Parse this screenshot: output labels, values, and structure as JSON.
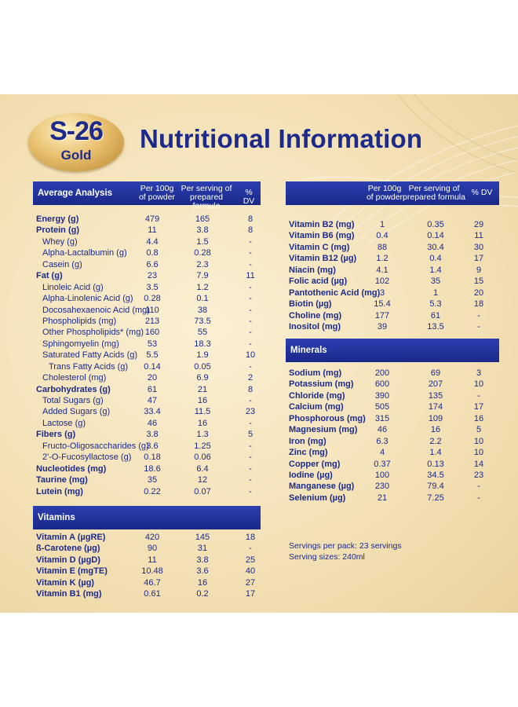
{
  "brand": {
    "logo_text": "S-26",
    "variant": "Gold"
  },
  "title": "Nutritional Information",
  "left_header": {
    "label": "Average Analysis",
    "col1": [
      "Per 100g",
      "of powder"
    ],
    "col2": [
      "Per serving of",
      "prepared formula"
    ],
    "col3": "% DV"
  },
  "right_header": {
    "col1": [
      "Per 100g",
      "of powder"
    ],
    "col2": [
      "Per serving of",
      "prepared formula"
    ],
    "col3": "% DV"
  },
  "average_analysis": [
    {
      "label": "Energy (g)",
      "indent": 0,
      "per100": "479",
      "serving": "165",
      "dv": "8"
    },
    {
      "label": "Protein (g)",
      "indent": 0,
      "per100": "11",
      "serving": "3.8",
      "dv": "8"
    },
    {
      "label": "Whey (g)",
      "indent": 1,
      "per100": "4.4",
      "serving": "1.5",
      "dv": "-"
    },
    {
      "label": "Alpha-Lactalbumin (g)",
      "indent": 1,
      "per100": "0.8",
      "serving": "0.28",
      "dv": "-"
    },
    {
      "label": "Casein (g)",
      "indent": 1,
      "per100": "6.6",
      "serving": "2.3",
      "dv": "-"
    },
    {
      "label": "Fat (g)",
      "indent": 0,
      "per100": "23",
      "serving": "7.9",
      "dv": "11"
    },
    {
      "label": "Linoleic Acid (g)",
      "indent": 1,
      "per100": "3.5",
      "serving": "1.2",
      "dv": "-"
    },
    {
      "label": "Alpha-Linolenic Acid (g)",
      "indent": 1,
      "per100": "0.28",
      "serving": "0.1",
      "dv": "-"
    },
    {
      "label": "Docosahexaenoic Acid (mg)",
      "indent": 1,
      "per100": "110",
      "serving": "38",
      "dv": "-"
    },
    {
      "label": "Phospholipids (mg)",
      "indent": 1,
      "per100": "213",
      "serving": "73.5",
      "dv": "-"
    },
    {
      "label": "Other Phospholipids* (mg)",
      "indent": 1,
      "per100": "160",
      "serving": "55",
      "dv": "-"
    },
    {
      "label": "Sphingomyelin (mg)",
      "indent": 1,
      "per100": "53",
      "serving": "18.3",
      "dv": "-"
    },
    {
      "label": "Saturated Fatty Acids (g)",
      "indent": 1,
      "per100": "5.5",
      "serving": "1.9",
      "dv": "10"
    },
    {
      "label": "Trans Fatty Acids (g)",
      "indent": 2,
      "per100": "0.14",
      "serving": "0.05",
      "dv": "-"
    },
    {
      "label": "Cholesterol (mg)",
      "indent": 1,
      "per100": "20",
      "serving": "6.9",
      "dv": "2"
    },
    {
      "label": "Carbohydrates (g)",
      "indent": 0,
      "per100": "61",
      "serving": "21",
      "dv": "8"
    },
    {
      "label": "Total Sugars (g)",
      "indent": 1,
      "per100": "47",
      "serving": "16",
      "dv": "-"
    },
    {
      "label": "Added Sugars (g)",
      "indent": 1,
      "per100": "33.4",
      "serving": "11.5",
      "dv": "23"
    },
    {
      "label": "Lactose (g)",
      "indent": 1,
      "per100": "46",
      "serving": "16",
      "dv": "-"
    },
    {
      "label": "Fibers (g)",
      "indent": 0,
      "per100": "3.8",
      "serving": "1.3",
      "dv": "5"
    },
    {
      "label": "Fructo-Oligosaccharides (g)",
      "indent": 1,
      "per100": "3.6",
      "serving": "1.25",
      "dv": "-"
    },
    {
      "label": "2'-O-Fucosyllactose (g)",
      "indent": 1,
      "per100": "0.18",
      "serving": "0.06",
      "dv": "-"
    },
    {
      "label": "Nucleotides (mg)",
      "indent": 0,
      "per100": "18.6",
      "serving": "6.4",
      "dv": "-"
    },
    {
      "label": "Taurine (mg)",
      "indent": 0,
      "per100": "35",
      "serving": "12",
      "dv": "-"
    },
    {
      "label": "Lutein (mg)",
      "indent": 0,
      "per100": "0.22",
      "serving": "0.07",
      "dv": "-"
    }
  ],
  "vitamins_label": "Vitamins",
  "vitamins": [
    {
      "label": "Vitamin A (µgRE)",
      "indent": 0,
      "per100": "420",
      "serving": "145",
      "dv": "18"
    },
    {
      "label": "ß-Carotene (µg)",
      "indent": 0,
      "per100": "90",
      "serving": "31",
      "dv": "-"
    },
    {
      "label": "Vitamin D  (µgD)",
      "indent": 0,
      "per100": "11",
      "serving": "3.8",
      "dv": "25"
    },
    {
      "label": "Vitamin E (mgTE)",
      "indent": 0,
      "per100": "10.48",
      "serving": "3.6",
      "dv": "40"
    },
    {
      "label": "Vitamin K (µg)",
      "indent": 0,
      "per100": "46.7",
      "serving": "16",
      "dv": "27"
    },
    {
      "label": "Vitamin B1 (mg)",
      "indent": 0,
      "per100": "0.61",
      "serving": "0.2",
      "dv": "17"
    }
  ],
  "vitamins_cont": [
    {
      "label": "Vitamin B2 (mg)",
      "indent": 0,
      "per100": "1",
      "serving": "0.35",
      "dv": "29"
    },
    {
      "label": "Vitamin B6 (mg)",
      "indent": 0,
      "per100": "0.4",
      "serving": "0.14",
      "dv": "11"
    },
    {
      "label": "Vitamin  C (mg)",
      "indent": 0,
      "per100": "88",
      "serving": "30.4",
      "dv": "30"
    },
    {
      "label": "Vitamin B12 (µg)",
      "indent": 0,
      "per100": "1.2",
      "serving": "0.4",
      "dv": "17"
    },
    {
      "label": "Niacin (mg)",
      "indent": 0,
      "per100": "4.1",
      "serving": "1.4",
      "dv": "9"
    },
    {
      "label": "Folic acid (µg)",
      "indent": 0,
      "per100": "102",
      "serving": "35",
      "dv": "15"
    },
    {
      "label": "Pantothenic Acid (mg)",
      "indent": 0,
      "per100": "3",
      "serving": "1",
      "dv": "20"
    },
    {
      "label": "Biotin (µg)",
      "indent": 0,
      "per100": "15.4",
      "serving": "5.3",
      "dv": "18"
    },
    {
      "label": "Choline (mg)",
      "indent": 0,
      "per100": "177",
      "serving": "61",
      "dv": "-"
    },
    {
      "label": "Inositol (mg)",
      "indent": 0,
      "per100": "39",
      "serving": "13.5",
      "dv": "-"
    }
  ],
  "minerals_label": "Minerals",
  "minerals": [
    {
      "label": "Sodium (mg)",
      "indent": 0,
      "per100": "200",
      "serving": "69",
      "dv": "3"
    },
    {
      "label": "Potassium (mg)",
      "indent": 0,
      "per100": "600",
      "serving": "207",
      "dv": "10"
    },
    {
      "label": "Chloride (mg)",
      "indent": 0,
      "per100": "390",
      "serving": "135",
      "dv": "-"
    },
    {
      "label": "Calcium (mg)",
      "indent": 0,
      "per100": "505",
      "serving": "174",
      "dv": "17"
    },
    {
      "label": "Phosphorous (mg)",
      "indent": 0,
      "per100": "315",
      "serving": "109",
      "dv": "16"
    },
    {
      "label": "Magnesium (mg)",
      "indent": 0,
      "per100": "46",
      "serving": "16",
      "dv": "5"
    },
    {
      "label": "Iron (mg)",
      "indent": 0,
      "per100": "6.3",
      "serving": "2.2",
      "dv": "10"
    },
    {
      "label": "Zinc (mg)",
      "indent": 0,
      "per100": "4",
      "serving": "1.4",
      "dv": "10"
    },
    {
      "label": "Copper (mg)",
      "indent": 0,
      "per100": "0.37",
      "serving": "0.13",
      "dv": "14"
    },
    {
      "label": "Iodine (µg)",
      "indent": 0,
      "per100": "100",
      "serving": "34.5",
      "dv": "23"
    },
    {
      "label": "Manganese (µg)",
      "indent": 0,
      "per100": "230",
      "serving": "79.4",
      "dv": "-"
    },
    {
      "label": "Selenium (µg)",
      "indent": 0,
      "per100": "21",
      "serving": "7.25",
      "dv": "-"
    }
  ],
  "footnotes": {
    "servings_per_pack": "Servings per pack: 23 servings",
    "serving_size": "Serving sizes: 240ml"
  },
  "colors": {
    "navy": "#1c2a8c",
    "bar": "#2236a3",
    "gold": "#d9b15e",
    "cream": "#f6e6c0"
  }
}
